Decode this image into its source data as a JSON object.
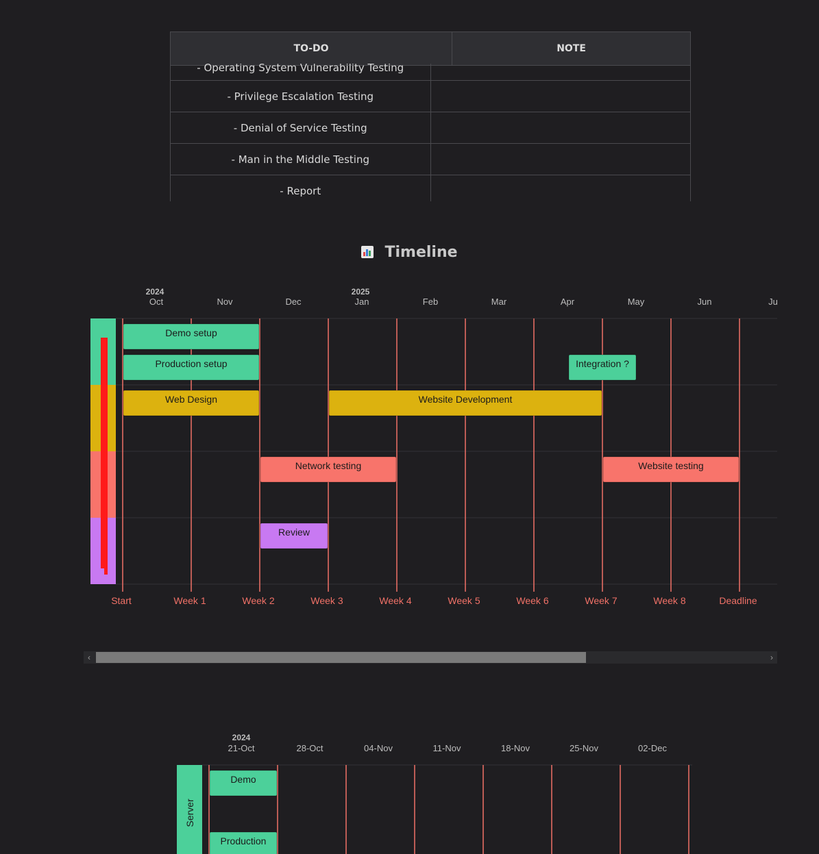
{
  "todo": {
    "headers": [
      "TO-DO",
      "NOTE"
    ],
    "rows": [
      {
        "todo": "- Operating System Vulnerability Testing",
        "note": ""
      },
      {
        "todo": "- Privilege Escalation Testing",
        "note": ""
      },
      {
        "todo": "- Denial of Service Testing",
        "note": ""
      },
      {
        "todo": "- Man in the Middle Testing",
        "note": ""
      },
      {
        "todo": "- Report",
        "note": ""
      }
    ]
  },
  "timeline": {
    "title": "Timeline",
    "title_icon": "bar-chart-icon",
    "years": [
      {
        "label": "2024",
        "month_index": 0
      },
      {
        "label": "2025",
        "month_index": 3
      }
    ],
    "months": [
      "Oct",
      "Nov",
      "Dec",
      "Jan",
      "Feb",
      "Mar",
      "Apr",
      "May",
      "Jun",
      "Ju"
    ],
    "milestones": [
      "Start",
      "Week 1",
      "Week 2",
      "Week 3",
      "Week 4",
      "Week 5",
      "Week 6",
      "Week 7",
      "Week 8",
      "Deadline"
    ],
    "sections": [
      {
        "color": "#4cd09a"
      },
      {
        "color": "#dcb20f"
      },
      {
        "color": "#f8746b"
      },
      {
        "color": "#c879f2"
      }
    ],
    "tasks": [
      {
        "label": "Demo setup",
        "section": 0,
        "row": 0,
        "start": 0,
        "end": 2,
        "color": "#4cd09a"
      },
      {
        "label": "Production setup",
        "section": 0,
        "row": 1,
        "start": 0,
        "end": 2,
        "color": "#4cd09a"
      },
      {
        "label": "Integration ?",
        "section": 0,
        "row": 1,
        "start": 6.5,
        "end": 7.5,
        "color": "#4cd09a"
      },
      {
        "label": "Web Design",
        "section": 1,
        "row": 0,
        "start": 0,
        "end": 2,
        "color": "#dcb20f"
      },
      {
        "label": "Website Development",
        "section": 1,
        "row": 0,
        "start": 3,
        "end": 7,
        "color": "#dcb20f"
      },
      {
        "label": "Network testing",
        "section": 2,
        "row": 0,
        "start": 2,
        "end": 4,
        "color": "#f8746b"
      },
      {
        "label": "Website testing",
        "section": 2,
        "row": 0,
        "start": 7,
        "end": 9,
        "color": "#f8746b"
      },
      {
        "label": "Review",
        "section": 3,
        "row": 0,
        "start": 2,
        "end": 3,
        "color": "#c879f2"
      }
    ],
    "accent": "#f07167"
  },
  "timeline2": {
    "year": "2024",
    "dates": [
      "21-Oct",
      "28-Oct",
      "04-Nov",
      "11-Nov",
      "18-Nov",
      "25-Nov",
      "02-Dec"
    ],
    "section_label": "Server",
    "section_color": "#4cd09a",
    "tasks": [
      {
        "label": "Demo",
        "start": 0,
        "end": 1
      },
      {
        "label": "Production",
        "start": 0,
        "end": 1
      }
    ]
  }
}
